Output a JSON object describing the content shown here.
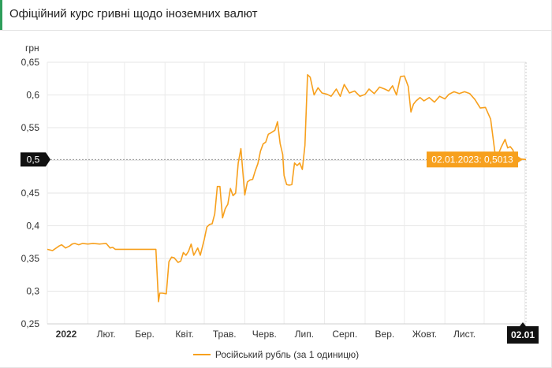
{
  "page": {
    "title": "Офіційний курс гривні щодо іноземних валют"
  },
  "chart_data": {
    "type": "line",
    "title": "Офіційний курс гривні щодо іноземних валют",
    "ylabel": "грн",
    "ylim": [
      0.25,
      0.65
    ],
    "yticks": [
      "0,65",
      "0,6",
      "0,55",
      "0,5",
      "0,45",
      "0,4",
      "0,35",
      "0,3",
      "0,25"
    ],
    "xticks": [
      "2022",
      "Лют.",
      "Бер.",
      "Квіт.",
      "Трав.",
      "Черв.",
      "Лип.",
      "Серп.",
      "Вер.",
      "Жовт.",
      "Лист.",
      "02.01"
    ],
    "x_range": [
      "2022-01-01",
      "2023-01-02"
    ],
    "grid": true,
    "legend": "bottom",
    "series": [
      {
        "name": "Російський рубль (за 1 одиницю)",
        "color": "#f7a01d",
        "x": [
          "2022-01-01",
          "2022-01-05",
          "2022-01-10",
          "2022-01-12",
          "2022-01-15",
          "2022-01-18",
          "2022-01-20",
          "2022-01-22",
          "2022-01-25",
          "2022-01-28",
          "2022-02-01",
          "2022-02-05",
          "2022-02-10",
          "2022-02-15",
          "2022-02-18",
          "2022-02-20",
          "2022-02-22",
          "2022-02-24",
          "2022-02-26",
          "2022-03-10",
          "2022-03-20",
          "2022-03-25",
          "2022-03-27",
          "2022-03-28",
          "2022-03-30",
          "2022-04-02",
          "2022-04-04",
          "2022-04-06",
          "2022-04-08",
          "2022-04-11",
          "2022-04-13",
          "2022-04-15",
          "2022-04-17",
          "2022-04-19",
          "2022-04-21",
          "2022-04-23",
          "2022-04-26",
          "2022-04-28",
          "2022-05-01",
          "2022-05-03",
          "2022-05-05",
          "2022-05-07",
          "2022-05-09",
          "2022-05-11",
          "2022-05-13",
          "2022-05-15",
          "2022-05-17",
          "2022-05-19",
          "2022-05-21",
          "2022-05-23",
          "2022-05-25",
          "2022-05-27",
          "2022-05-29",
          "2022-06-01",
          "2022-06-03",
          "2022-06-05",
          "2022-06-07",
          "2022-06-09",
          "2022-06-11",
          "2022-06-13",
          "2022-06-15",
          "2022-06-17",
          "2022-06-19",
          "2022-06-21",
          "2022-06-24",
          "2022-06-26",
          "2022-06-28",
          "2022-06-30",
          "2022-07-01",
          "2022-07-03",
          "2022-07-05",
          "2022-07-07",
          "2022-07-09",
          "2022-07-11",
          "2022-07-13",
          "2022-07-15",
          "2022-07-17",
          "2022-07-19",
          "2022-07-21",
          "2022-07-24",
          "2022-07-27",
          "2022-07-30",
          "2022-08-03",
          "2022-08-06",
          "2022-08-10",
          "2022-08-13",
          "2022-08-16",
          "2022-08-20",
          "2022-08-24",
          "2022-08-28",
          "2022-09-01",
          "2022-09-04",
          "2022-09-08",
          "2022-09-12",
          "2022-09-16",
          "2022-09-19",
          "2022-09-22",
          "2022-09-25",
          "2022-09-28",
          "2022-10-01",
          "2022-10-04",
          "2022-10-06",
          "2022-10-08",
          "2022-10-10",
          "2022-10-13",
          "2022-10-16",
          "2022-10-20",
          "2022-10-24",
          "2022-10-28",
          "2022-11-01",
          "2022-11-04",
          "2022-11-08",
          "2022-11-12",
          "2022-11-16",
          "2022-11-20",
          "2022-11-24",
          "2022-11-28",
          "2022-12-02",
          "2022-12-06",
          "2022-12-10",
          "2022-12-14",
          "2022-12-17",
          "2022-12-19",
          "2022-12-21",
          "2022-12-23",
          "2022-12-25",
          "2022-12-27",
          "2022-12-29",
          "2023-01-02"
        ],
        "values": [
          0.364,
          0.362,
          0.369,
          0.371,
          0.366,
          0.369,
          0.372,
          0.373,
          0.371,
          0.373,
          0.372,
          0.373,
          0.372,
          0.373,
          0.366,
          0.367,
          0.364,
          0.364,
          0.364,
          0.364,
          0.364,
          0.364,
          0.284,
          0.297,
          0.297,
          0.296,
          0.345,
          0.352,
          0.351,
          0.344,
          0.346,
          0.359,
          0.355,
          0.361,
          0.372,
          0.355,
          0.366,
          0.355,
          0.379,
          0.398,
          0.402,
          0.403,
          0.418,
          0.46,
          0.46,
          0.412,
          0.426,
          0.433,
          0.457,
          0.446,
          0.45,
          0.496,
          0.518,
          0.447,
          0.467,
          0.47,
          0.471,
          0.484,
          0.495,
          0.514,
          0.525,
          0.528,
          0.54,
          0.542,
          0.546,
          0.559,
          0.526,
          0.509,
          0.477,
          0.463,
          0.462,
          0.463,
          0.496,
          0.492,
          0.496,
          0.486,
          0.523,
          0.631,
          0.627,
          0.6,
          0.611,
          0.603,
          0.601,
          0.598,
          0.609,
          0.598,
          0.616,
          0.603,
          0.606,
          0.598,
          0.601,
          0.609,
          0.602,
          0.612,
          0.609,
          0.606,
          0.614,
          0.6,
          0.628,
          0.629,
          0.613,
          0.574,
          0.586,
          0.591,
          0.596,
          0.591,
          0.596,
          0.589,
          0.598,
          0.594,
          0.601,
          0.605,
          0.602,
          0.605,
          0.602,
          0.593,
          0.58,
          0.581,
          0.563,
          0.5,
          0.52,
          0.532,
          0.519,
          0.521,
          0.516,
          0.501,
          0.498,
          0.502,
          0.5013
        ]
      }
    ],
    "crosshair": {
      "y_label": "0,5",
      "x_label": "02.01",
      "tooltip": "02.01.2023: 0,5013"
    }
  }
}
